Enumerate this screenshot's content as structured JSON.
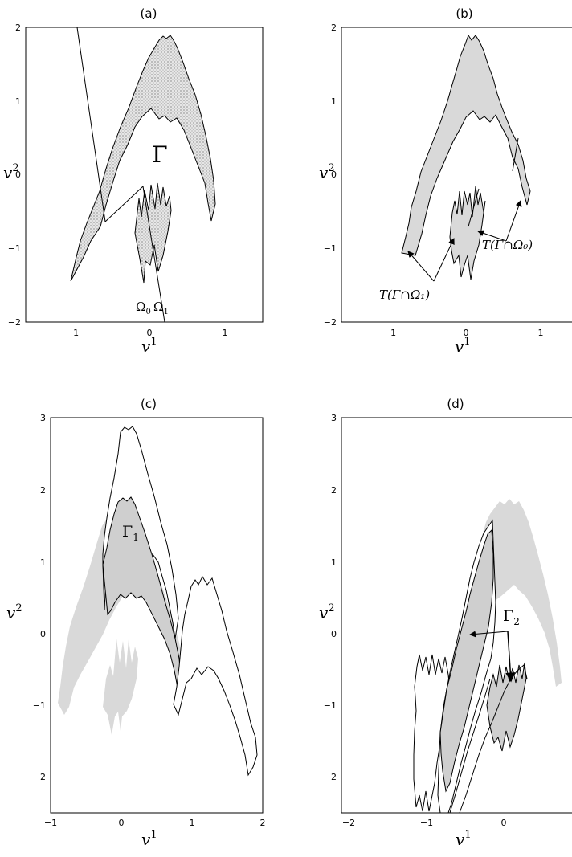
{
  "figure": {
    "panels": [
      {
        "title": "(a)",
        "xlabel": "v",
        "xlabel_sup": "1",
        "ylabel": "v",
        "ylabel_sup": "2",
        "xticks": [
          "−1",
          "0",
          "1"
        ],
        "yticks": [
          "−2",
          "−1",
          "0",
          "1",
          "2"
        ],
        "xlim": [
          -1.5,
          1.5
        ],
        "ylim": [
          -2,
          2
        ],
        "annotations": {
          "gamma": "Γ",
          "omega0": "Ω",
          "omega0_sub": "0",
          "omega1": "Ω",
          "omega1_sub": "1"
        }
      },
      {
        "title": "(b)",
        "xlabel": "v",
        "xlabel_sup": "1",
        "ylabel": "v",
        "ylabel_sup": "2",
        "xticks": [
          "−1",
          "0",
          "1"
        ],
        "yticks": [
          "−2",
          "−1",
          "0",
          "1",
          "2"
        ],
        "xlim": [
          -1.5,
          1.5
        ],
        "ylim": [
          -2,
          2
        ],
        "annotations": {
          "t_omega0": "T(Γ∩Ω₀)",
          "t_omega1": "T(Γ∩Ω₁)"
        }
      },
      {
        "title": "(c)",
        "xlabel": "v",
        "xlabel_sup": "1",
        "ylabel": "v",
        "ylabel_sup": "2",
        "xticks": [
          "−1",
          "0",
          "1",
          "2"
        ],
        "yticks": [
          "−2",
          "−1",
          "0",
          "1",
          "2",
          "3"
        ],
        "xlim": [
          -1,
          2
        ],
        "ylim": [
          -2.5,
          3
        ],
        "annotations": {
          "gamma1": "Γ",
          "gamma1_sub": "1"
        }
      },
      {
        "title": "(d)",
        "xlabel": "v",
        "xlabel_sup": "1",
        "ylabel": "v",
        "ylabel_sup": "2",
        "xticks": [
          "−2",
          "−1",
          "0"
        ],
        "yticks": [
          "−2",
          "−1",
          "0",
          "1",
          "2",
          "3"
        ],
        "xlim": [
          -2,
          1
        ],
        "ylim": [
          -2.5,
          3
        ],
        "annotations": {
          "gamma2": "Γ",
          "gamma2_sub": "2"
        }
      }
    ],
    "colors": {
      "shade": "#d9d9d9",
      "stipple": "#c8c8c8",
      "line": "#000000"
    }
  }
}
